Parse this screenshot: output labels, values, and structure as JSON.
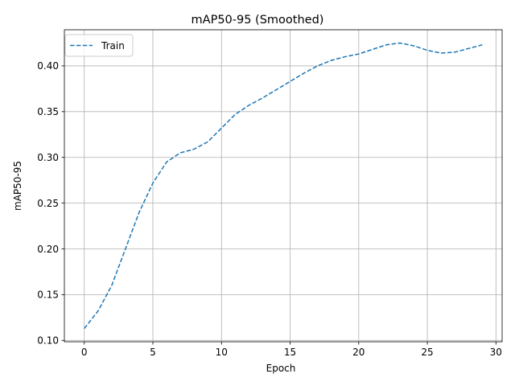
{
  "chart_data": {
    "type": "line",
    "title": "mAP50-95 (Smoothed)",
    "xlabel": "Epoch",
    "ylabel": "mAP50-95",
    "xlim": [
      -1.45,
      30.45
    ],
    "ylim": [
      0.0985,
      0.4395
    ],
    "xticks": [
      0,
      5,
      10,
      15,
      20,
      25,
      30
    ],
    "xtick_labels": [
      "0",
      "5",
      "10",
      "15",
      "20",
      "25",
      "30"
    ],
    "yticks": [
      0.1,
      0.15,
      0.2,
      0.25,
      0.3,
      0.35,
      0.4
    ],
    "ytick_labels": [
      "0.10",
      "0.15",
      "0.20",
      "0.25",
      "0.30",
      "0.35",
      "0.40"
    ],
    "grid": true,
    "legend_position": "upper-left",
    "series": [
      {
        "name": "Train",
        "style": "dashed",
        "color": "#1f77b4",
        "x": [
          0,
          1,
          2,
          3,
          4,
          5,
          6,
          7,
          8,
          9,
          10,
          11,
          12,
          13,
          14,
          15,
          16,
          17,
          18,
          19,
          20,
          21,
          22,
          23,
          24,
          25,
          26,
          27,
          28,
          29
        ],
        "values": [
          0.113,
          0.132,
          0.16,
          0.2,
          0.24,
          0.272,
          0.295,
          0.305,
          0.309,
          0.317,
          0.332,
          0.347,
          0.357,
          0.365,
          0.374,
          0.383,
          0.392,
          0.4,
          0.406,
          0.41,
          0.413,
          0.418,
          0.423,
          0.425,
          0.422,
          0.417,
          0.414,
          0.415,
          0.419,
          0.423
        ]
      }
    ]
  }
}
